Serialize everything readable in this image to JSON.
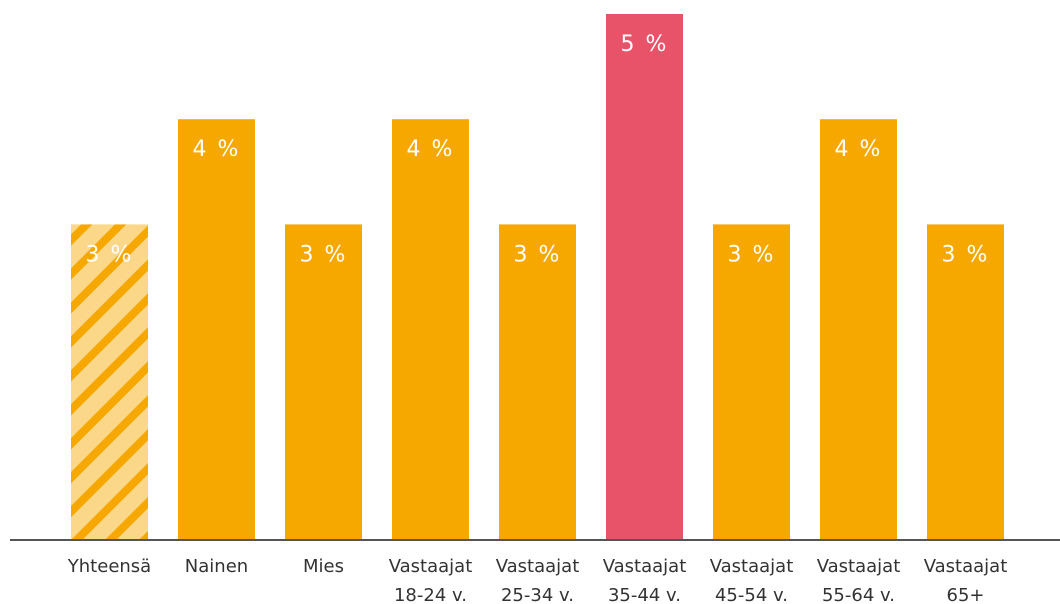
{
  "chart_data": {
    "type": "bar",
    "categories": [
      "Yhteensä",
      "Nainen",
      "Mies",
      "Vastaajat 18-24 v.",
      "Vastaajat 25-34 v.",
      "Vastaajat 35-44 v.",
      "Vastaajat 45-54 v.",
      "Vastaajat 55-64 v.",
      "Vastaajat 65+"
    ],
    "values": [
      3,
      4,
      3,
      4,
      3,
      5,
      3,
      4,
      3
    ],
    "value_labels": [
      "3 %",
      "4 %",
      "3 %",
      "4 %",
      "3 %",
      "5 %",
      "3 %",
      "4 %",
      "3 %"
    ],
    "colors": [
      "#f7a800",
      "#f7a800",
      "#f7a800",
      "#f7a800",
      "#f7a800",
      "#e8536a",
      "#f7a800",
      "#f7a800",
      "#f7a800"
    ],
    "hatch": [
      true,
      false,
      false,
      false,
      false,
      false,
      false,
      false,
      false
    ],
    "ylim": [
      0,
      5
    ]
  }
}
